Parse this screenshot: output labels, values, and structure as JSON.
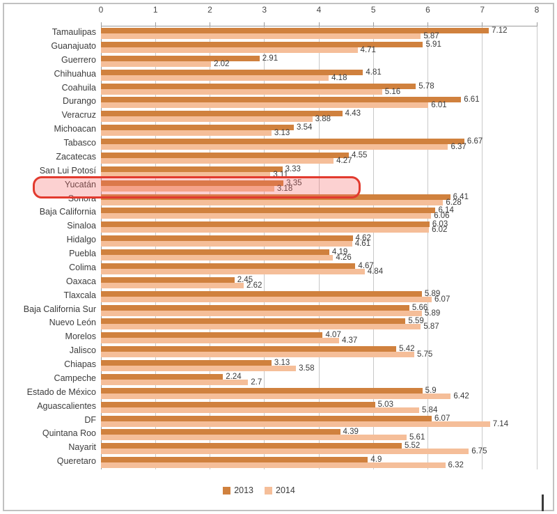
{
  "colors": {
    "series_2013": "#d0813e",
    "series_2014": "#f5be99",
    "highlight_border": "#e23a2e",
    "highlight_fill": "rgba(246,104,104,0.30)",
    "gridline": "#c8c8c8",
    "axis_line": "#9b9b9b",
    "frame_border": "#c1c1c1",
    "text": "#3b3b3b"
  },
  "legend": {
    "items": [
      {
        "label": "2013"
      },
      {
        "label": "2014"
      }
    ]
  },
  "chart_data": {
    "type": "bar",
    "orientation": "horizontal",
    "title": "",
    "xlabel": "",
    "ylabel": "",
    "xlim": [
      0,
      8
    ],
    "x_ticks": [
      0,
      1,
      2,
      3,
      4,
      5,
      6,
      7,
      8
    ],
    "grid": true,
    "legend_position": "bottom",
    "highlighted_category": "Yucatán",
    "categories": [
      "Tamaulipas",
      "Guanajuato",
      "Guerrero",
      "Chihuahua",
      "Coahuila",
      "Durango",
      "Veracruz",
      "Michoacan",
      "Tabasco",
      "Zacatecas",
      "San Lui Potosí",
      "Yucatán",
      "Sonora",
      "Baja California",
      "Sinaloa",
      "Hidalgo",
      "Puebla",
      "Colima",
      "Oaxaca",
      "Tlaxcala",
      "Baja California Sur",
      "Nuevo León",
      "Morelos",
      "Jalisco",
      "Chiapas",
      "Campeche",
      "Estado de México",
      "Aguascalientes",
      "DF",
      "Quintana Roo",
      "Nayarit",
      "Queretaro"
    ],
    "series": [
      {
        "name": "2013",
        "values": [
          7.12,
          5.91,
          2.91,
          4.81,
          5.78,
          6.61,
          4.43,
          3.54,
          6.67,
          4.55,
          3.33,
          3.35,
          6.41,
          6.14,
          6.03,
          4.62,
          4.19,
          4.67,
          2.45,
          5.89,
          5.66,
          5.59,
          4.07,
          5.42,
          3.13,
          2.24,
          5.9,
          5.03,
          6.07,
          4.39,
          5.52,
          4.9
        ],
        "labels": [
          "7.12",
          "5.91",
          "2.91",
          "4.81",
          "5.78",
          "6.61",
          "4.43",
          "3.54",
          "6.67",
          "4.55",
          "3.33",
          "3.35",
          "6.41",
          "6.14",
          "6.03",
          "4.62",
          "4.19",
          "4.67",
          "2.45",
          "5.89",
          "5.66",
          "5.59",
          "4.07",
          "5.42",
          "3.13",
          "2.24",
          "5.9",
          "5.03",
          "6.07",
          "4.39",
          "5.52",
          "4.9"
        ]
      },
      {
        "name": "2014",
        "values": [
          5.87,
          4.71,
          2.02,
          4.18,
          5.16,
          6.01,
          3.88,
          3.13,
          6.37,
          4.27,
          3.11,
          3.18,
          6.28,
          6.06,
          6.02,
          4.61,
          4.26,
          4.84,
          2.62,
          6.07,
          5.89,
          5.87,
          4.37,
          5.75,
          3.58,
          2.7,
          6.42,
          5.84,
          7.14,
          5.61,
          6.75,
          6.32
        ],
        "labels": [
          "5.87",
          "4.71",
          "2.02",
          "4.18",
          "5.16",
          "6.01",
          "3.88",
          "3.13",
          "6.37",
          "4.27",
          "3.11",
          "3.18",
          "6.28",
          "6.06",
          "6.02",
          "4.61",
          "4.26",
          "4.84",
          "2.62",
          "6.07",
          "5.89",
          "5.87",
          "4.37",
          "5.75",
          "3.58",
          "2.7",
          "6.42",
          "5.84",
          "7.14",
          "5.61",
          "6.75",
          "6.32"
        ]
      }
    ]
  }
}
